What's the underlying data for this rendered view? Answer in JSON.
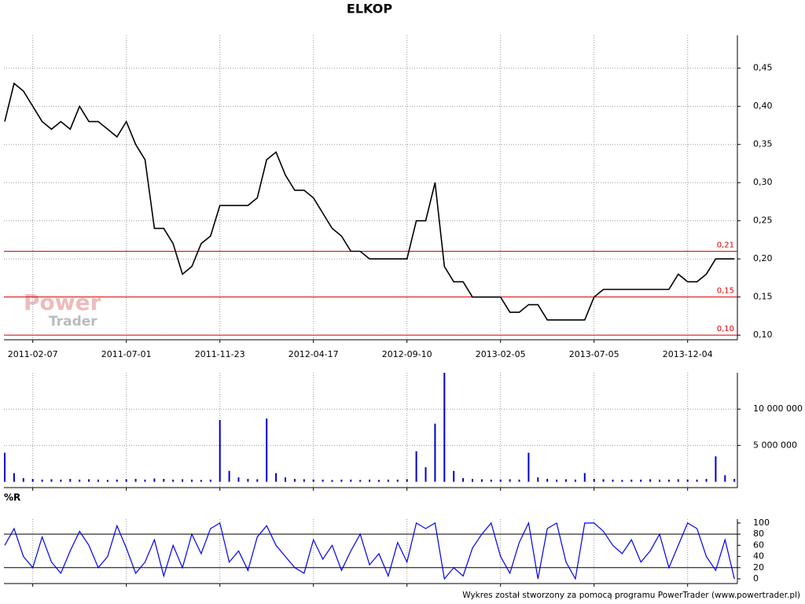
{
  "chart_data": [
    {
      "type": "line",
      "title": "ELKOP",
      "color": "#000000",
      "watermark": [
        "Power",
        "Trader"
      ],
      "categories": [
        null,
        null,
        null,
        "2011-02-07",
        null,
        null,
        null,
        null,
        null,
        null,
        null,
        null,
        null,
        "2011-07-01",
        null,
        null,
        null,
        null,
        null,
        null,
        null,
        null,
        null,
        "2011-11-23",
        null,
        null,
        null,
        null,
        null,
        null,
        null,
        null,
        null,
        "2012-04-17",
        null,
        null,
        null,
        null,
        null,
        null,
        null,
        null,
        null,
        "2012-09-10",
        null,
        null,
        null,
        null,
        null,
        null,
        null,
        null,
        null,
        "2013-02-05",
        null,
        null,
        null,
        null,
        null,
        null,
        null,
        null,
        null,
        "2013-07-05",
        null,
        null,
        null,
        null,
        null,
        null,
        null,
        null,
        null,
        "2013-12-04",
        null,
        null,
        null,
        null,
        null
      ],
      "values": [
        0.38,
        0.43,
        0.42,
        0.4,
        0.38,
        0.37,
        0.38,
        0.37,
        0.4,
        0.38,
        0.38,
        0.37,
        0.36,
        0.38,
        0.35,
        0.33,
        0.24,
        0.24,
        0.22,
        0.18,
        0.19,
        0.22,
        0.23,
        0.27,
        0.27,
        0.27,
        0.27,
        0.28,
        0.33,
        0.34,
        0.31,
        0.29,
        0.29,
        0.28,
        0.26,
        0.24,
        0.23,
        0.21,
        0.21,
        0.2,
        0.2,
        0.2,
        0.2,
        0.2,
        0.25,
        0.25,
        0.3,
        0.19,
        0.17,
        0.17,
        0.15,
        0.15,
        0.15,
        0.15,
        0.13,
        0.13,
        0.14,
        0.14,
        0.12,
        0.12,
        0.12,
        0.12,
        0.12,
        0.15,
        0.16,
        0.16,
        0.16,
        0.16,
        0.16,
        0.16,
        0.16,
        0.16,
        0.18,
        0.17,
        0.17,
        0.18,
        0.2,
        0.2,
        0.2
      ],
      "ylim": [
        0.094,
        0.493
      ],
      "yticks": [
        {
          "value": 0.1,
          "label": "0,10"
        },
        {
          "value": 0.15,
          "label": "0,15"
        },
        {
          "value": 0.2,
          "label": "0,20"
        },
        {
          "value": 0.25,
          "label": "0,25"
        },
        {
          "value": 0.3,
          "label": "0,30"
        },
        {
          "value": 0.35,
          "label": "0,35"
        },
        {
          "value": 0.4,
          "label": "0,40"
        },
        {
          "value": 0.45,
          "label": "0,45"
        }
      ],
      "hlines": [
        {
          "value": 0.21,
          "label": "0,21"
        },
        {
          "value": 0.15,
          "label": "0,15"
        },
        {
          "value": 0.1,
          "label": "0,10"
        }
      ],
      "hline_color": "#dd0000",
      "grid": true
    },
    {
      "type": "bar",
      "color": "#0000cc",
      "values": [
        4000000,
        1200000,
        500000,
        400000,
        300000,
        350000,
        300000,
        400000,
        300000,
        350000,
        300000,
        250000,
        300000,
        350000,
        400000,
        300000,
        450000,
        400000,
        300000,
        350000,
        300000,
        250000,
        300000,
        8500000,
        1500000,
        600000,
        400000,
        350000,
        8700000,
        1200000,
        600000,
        400000,
        350000,
        300000,
        300000,
        250000,
        300000,
        300000,
        250000,
        300000,
        250000,
        300000,
        300000,
        350000,
        4200000,
        2000000,
        8000000,
        15000000,
        1500000,
        500000,
        400000,
        350000,
        300000,
        300000,
        350000,
        300000,
        4000000,
        600000,
        400000,
        300000,
        350000,
        300000,
        1200000,
        400000,
        350000,
        300000,
        250000,
        300000,
        300000,
        350000,
        300000,
        300000,
        350000,
        300000,
        300000,
        400000,
        3500000,
        900000,
        400000
      ],
      "ylim": [
        -800000,
        15000000
      ],
      "yticks": [
        {
          "value": 5000000,
          "label": "5 000 000"
        },
        {
          "value": 10000000,
          "label": "10 000 000"
        }
      ],
      "grid": true
    },
    {
      "type": "line",
      "title": "%R",
      "color": "#0000ee",
      "values": [
        60,
        90,
        40,
        20,
        75,
        30,
        10,
        50,
        85,
        60,
        20,
        40,
        95,
        55,
        10,
        30,
        70,
        5,
        60,
        20,
        80,
        45,
        90,
        100,
        30,
        50,
        15,
        75,
        95,
        60,
        40,
        20,
        10,
        70,
        35,
        60,
        15,
        50,
        80,
        25,
        45,
        5,
        65,
        30,
        100,
        90,
        100,
        0,
        20,
        5,
        55,
        80,
        100,
        40,
        10,
        65,
        100,
        0,
        90,
        100,
        30,
        0,
        100,
        100,
        85,
        60,
        45,
        70,
        30,
        50,
        80,
        20,
        60,
        100,
        90,
        40,
        15,
        70,
        0
      ],
      "ylim": [
        -8.5,
        107
      ],
      "yticks": [
        0,
        20,
        40,
        60,
        80,
        100
      ],
      "levels": [
        20,
        80
      ],
      "grid": false
    }
  ],
  "footer": "Wykres został stworzony za pomocą programu PowerTrader (www.powertrader.pl)"
}
